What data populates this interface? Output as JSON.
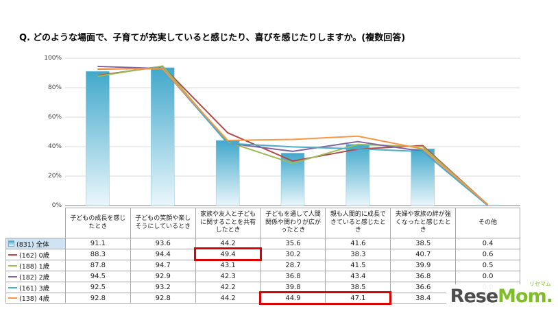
{
  "title": {
    "q": "Q.",
    "text": "どのような場面で、子育てが充実していると感じたり、喜びを感じたりしますか。(複数回答)"
  },
  "chart_data": {
    "type": "bar+line",
    "title": "どのような場面で、子育てが充実していると感じたり、喜びを感じたりしますか。(複数回答)",
    "xlabel": "",
    "ylabel": "",
    "ylim": [
      0,
      100
    ],
    "y_ticks": [
      "0%",
      "20%",
      "40%",
      "60%",
      "80%",
      "100%"
    ],
    "grid": "horizontal",
    "legend_position": "table-left",
    "categories": [
      "子どもの成長を感じたとき",
      "子どもの笑顔や楽しそうにしているとき",
      "家族や友人と子どもに関することを共有したとき",
      "子どもを通して人間関係や関わりが広がったとき",
      "親も人間的に成長できていると感じたとき",
      "夫婦や家族の絆が強くなったと感じたとき",
      "その他"
    ],
    "bar_series": {
      "name": "(831) 全体",
      "values": [
        91.1,
        93.6,
        44.2,
        35.6,
        41.6,
        38.5,
        0.4
      ],
      "color_top": "#41a8cb",
      "color_bottom": "#eaf6fb"
    },
    "line_series": [
      {
        "name": "(162) 0歳",
        "values": [
          88.3,
          94.4,
          49.4,
          30.2,
          38.3,
          40.7,
          0.6
        ],
        "color": "#b04a48"
      },
      {
        "name": "(188) 1歳",
        "values": [
          87.8,
          94.7,
          43.1,
          28.7,
          41.5,
          39.9,
          0.5
        ],
        "color": "#9bbb59"
      },
      {
        "name": "(182) 2歳",
        "values": [
          94.5,
          92.9,
          42.3,
          36.8,
          43.4,
          36.8,
          0.0
        ],
        "color": "#8064a2"
      },
      {
        "name": "(161) 3歳",
        "values": [
          92.5,
          93.2,
          42.2,
          39.8,
          38.5,
          36.6,
          0.0
        ],
        "color": "#4bacc6"
      },
      {
        "name": "(138) 4歳",
        "values": [
          92.8,
          92.8,
          44.2,
          44.9,
          47.1,
          38.4,
          0.7
        ],
        "color": "#f79646"
      }
    ],
    "highlights": [
      {
        "row": 1,
        "col_start": 2,
        "col_end": 2
      },
      {
        "row": 5,
        "col_start": 3,
        "col_end": 4
      }
    ]
  },
  "logo": {
    "rese": "Rese",
    "mom": "Mom",
    "dot": ".",
    "kana": "リセマム"
  }
}
